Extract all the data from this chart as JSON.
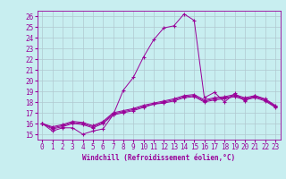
{
  "title": "",
  "xlabel": "Windchill (Refroidissement éolien,°C)",
  "ylabel": "",
  "bg_color": "#c8eef0",
  "grid_color": "#aacccc",
  "line_color": "#990099",
  "xlim": [
    -0.5,
    23.5
  ],
  "ylim": [
    14.5,
    26.5
  ],
  "xticks": [
    0,
    1,
    2,
    3,
    4,
    5,
    6,
    7,
    8,
    9,
    10,
    11,
    12,
    13,
    14,
    15,
    16,
    17,
    18,
    19,
    20,
    21,
    22,
    23
  ],
  "yticks": [
    15,
    16,
    17,
    18,
    19,
    20,
    21,
    22,
    23,
    24,
    25,
    26
  ],
  "series": [
    [
      16.0,
      15.3,
      15.6,
      15.6,
      15.0,
      15.3,
      15.5,
      16.8,
      19.1,
      20.3,
      22.2,
      23.8,
      24.9,
      25.1,
      26.2,
      25.6,
      18.4,
      18.9,
      18.0,
      18.8,
      18.1,
      18.6,
      18.2,
      17.6
    ],
    [
      16.0,
      15.5,
      15.7,
      16.0,
      15.9,
      15.6,
      16.0,
      16.8,
      17.0,
      17.2,
      17.5,
      17.8,
      17.9,
      18.1,
      18.4,
      18.5,
      18.0,
      18.2,
      18.3,
      18.5,
      18.2,
      18.4,
      18.1,
      17.5
    ],
    [
      16.0,
      15.6,
      15.8,
      16.1,
      16.0,
      15.7,
      16.1,
      16.9,
      17.1,
      17.3,
      17.6,
      17.8,
      18.0,
      18.2,
      18.5,
      18.6,
      18.1,
      18.3,
      18.4,
      18.6,
      18.3,
      18.5,
      18.2,
      17.6
    ],
    [
      16.0,
      15.7,
      15.9,
      16.2,
      16.1,
      15.8,
      16.2,
      17.0,
      17.2,
      17.4,
      17.7,
      17.9,
      18.1,
      18.3,
      18.6,
      18.7,
      18.2,
      18.4,
      18.5,
      18.7,
      18.4,
      18.6,
      18.3,
      17.7
    ]
  ],
  "tick_fontsize": 5.5,
  "xlabel_fontsize": 5.5
}
